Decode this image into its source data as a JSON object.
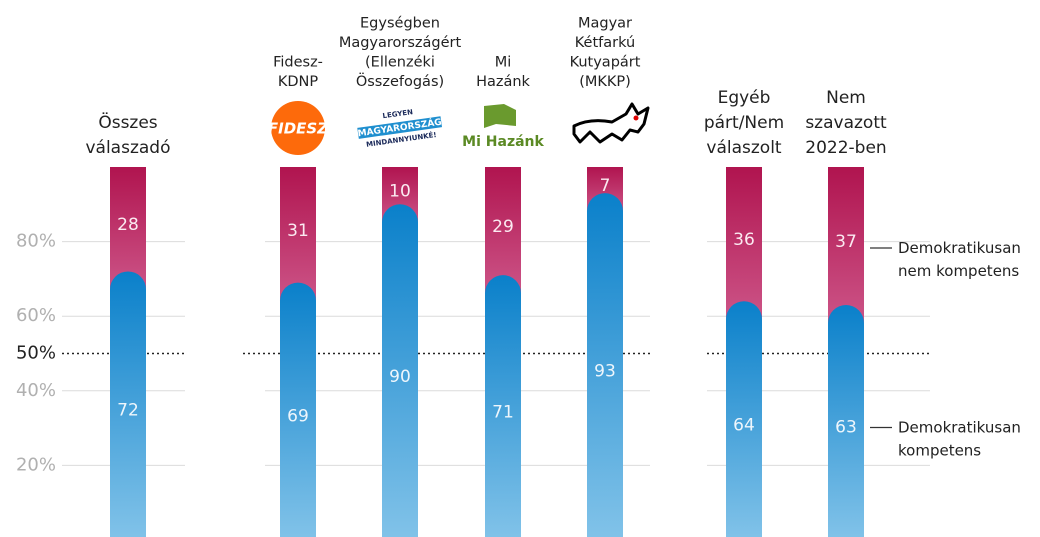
{
  "chart_data": {
    "type": "stacked_bar",
    "categories": [
      [
        "Összes",
        "válaszadó"
      ],
      [
        "Fidesz-",
        "KDNP"
      ],
      [
        "Egységben",
        "Magyarországért",
        "(Ellenzéki",
        "Összefogás)"
      ],
      [
        "Mi",
        "Hazánk"
      ],
      [
        "Magyar",
        "Kétfarkú",
        "Kutyapárt",
        "(MKKP)"
      ],
      [
        "Egyéb",
        "párt/Nem",
        "válaszolt"
      ],
      [
        "Nem",
        "szavazott",
        "2022-ben"
      ]
    ],
    "series": [
      {
        "name": "Demokratikusan kompetens",
        "color": "#0a80ca",
        "values": [
          72,
          69,
          90,
          71,
          93,
          64,
          63
        ]
      },
      {
        "name": "Demokratikusan nem kompetens",
        "color": "#b3175a",
        "values": [
          28,
          31,
          10,
          29,
          7,
          36,
          37
        ]
      }
    ],
    "ylim": [
      0,
      100
    ],
    "yticks": [
      {
        "value": 20,
        "label": "20%"
      },
      {
        "value": 40,
        "label": "40%"
      },
      {
        "value": 60,
        "label": "60%"
      },
      {
        "value": 80,
        "label": "80%"
      }
    ],
    "reference_line": {
      "value": 50,
      "label": "50%"
    },
    "grid": true,
    "legend": "right",
    "logos": {
      "fidesz": "FIDESZ",
      "egyseg": [
        "LEGYEN",
        "MAGYARORSZÁG",
        "MINDANNYIUNKÉ!"
      ],
      "mihazank": "Mi Hazánk"
    }
  }
}
